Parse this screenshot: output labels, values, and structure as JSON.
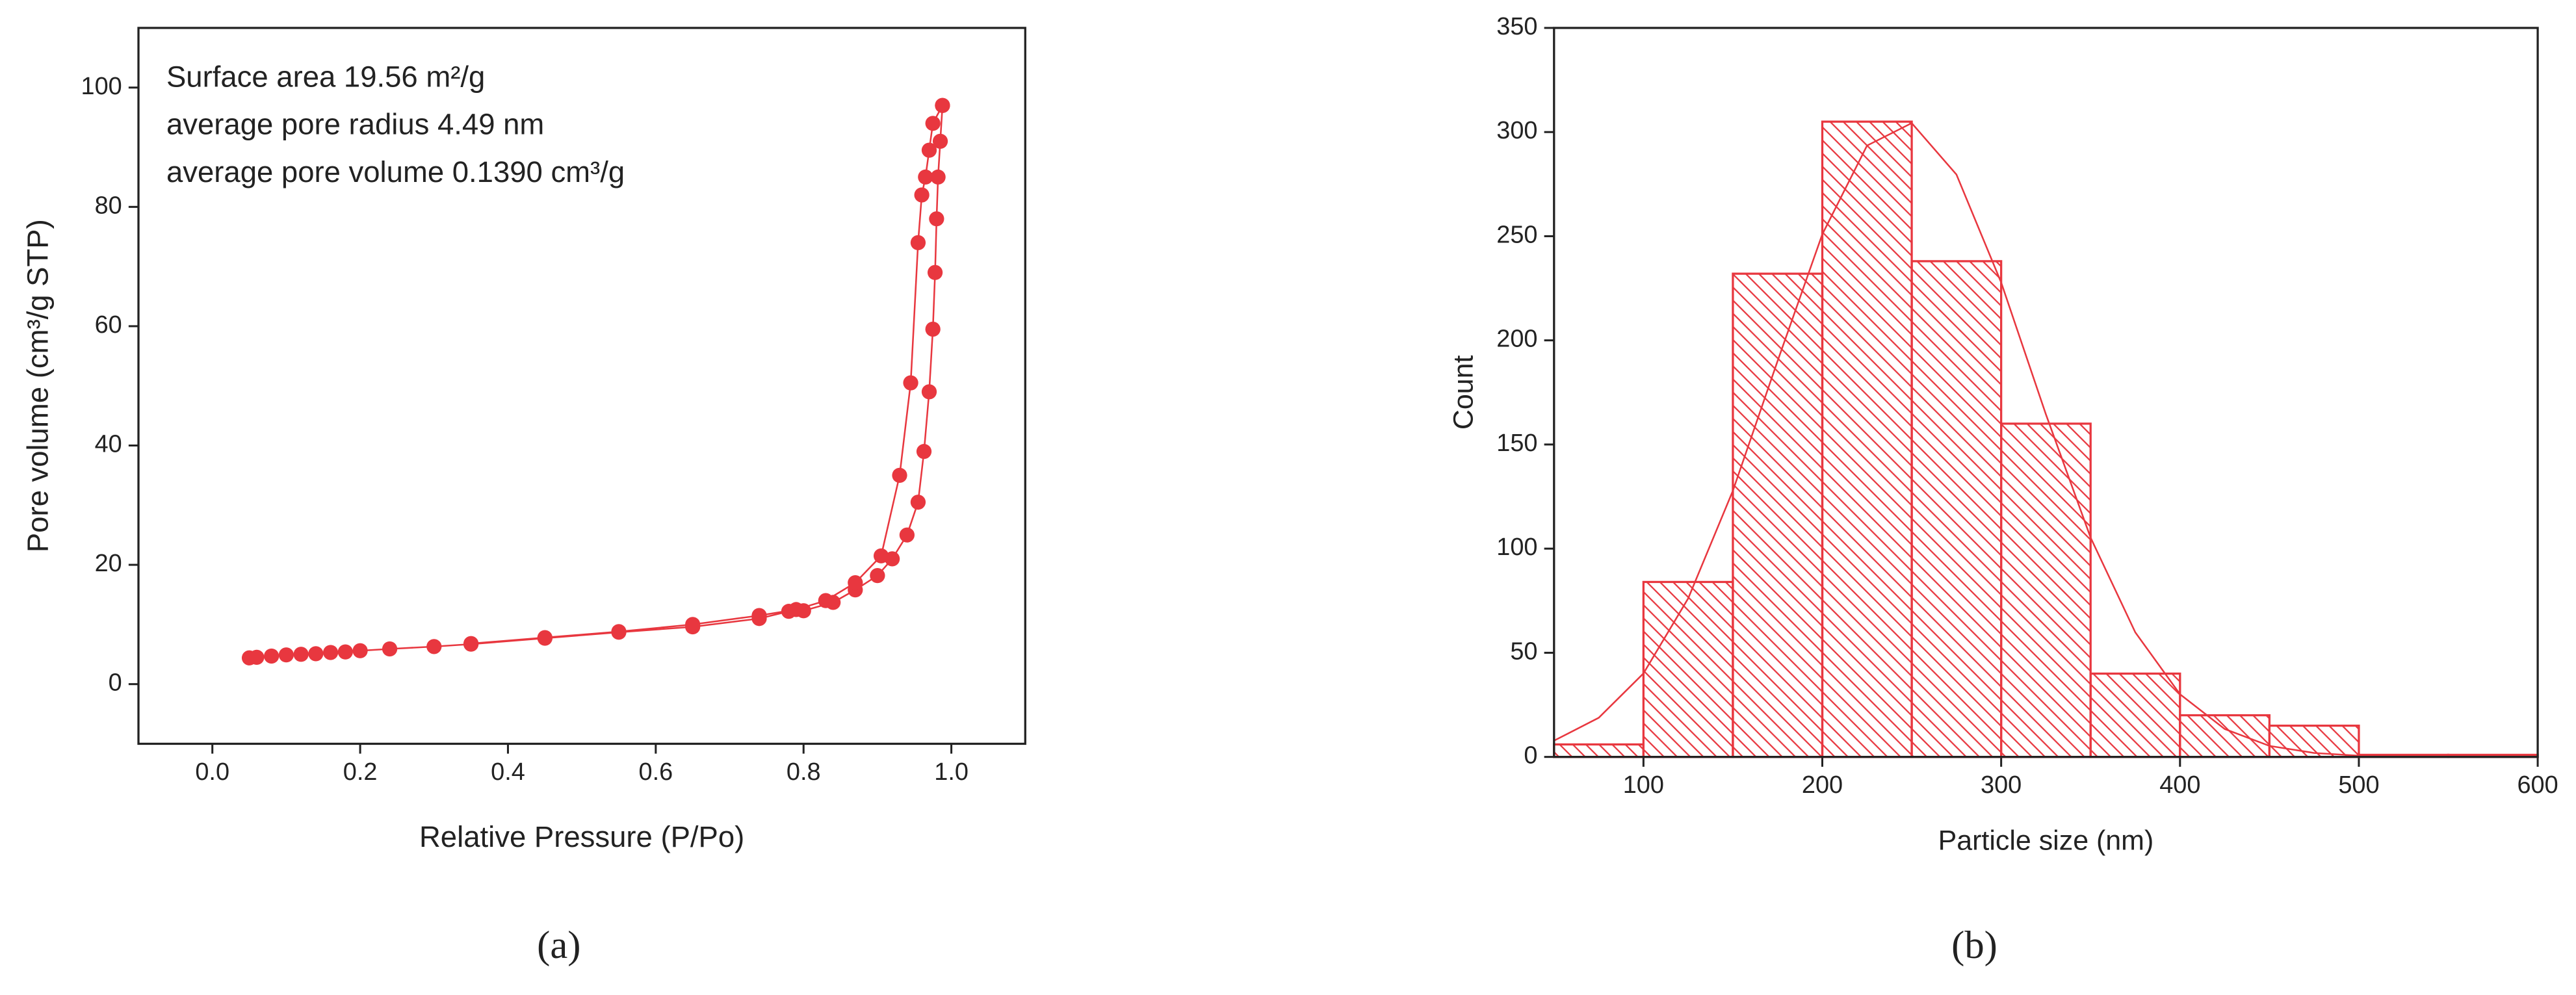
{
  "chart_data": [
    {
      "type": "scatter",
      "xlabel": "Relative Pressure (P/Po)",
      "ylabel": "Pore volume (cm³/g STP)",
      "caption": "(a)",
      "annotations": [
        "Surface area 19.56 m²/g",
        "average pore radius 4.49 nm",
        "average pore volume  0.1390 cm³/g"
      ],
      "xlim": [
        -0.1,
        1.1
      ],
      "ylim": [
        -10,
        110
      ],
      "xticks": [
        {
          "value": 0,
          "label": "0.0"
        },
        0.2,
        0.4,
        0.6,
        0.8,
        {
          "value": 1,
          "label": "1.0"
        }
      ],
      "yticks": [
        0,
        20,
        40,
        60,
        80,
        100
      ],
      "series": [
        {
          "color": "#e8373f",
          "x": [
            0.05,
            0.06,
            0.08,
            0.1,
            0.12,
            0.14,
            0.16,
            0.18,
            0.2,
            0.24,
            0.3,
            0.35,
            0.45,
            0.55,
            0.65,
            0.74,
            0.78,
            0.8,
            0.84,
            0.87,
            0.9,
            0.92,
            0.94,
            0.955,
            0.963,
            0.97,
            0.975,
            0.978,
            0.98,
            0.982,
            0.985,
            0.988
          ],
          "values": [
            4.4,
            4.5,
            4.7,
            4.9,
            5.0,
            5.1,
            5.3,
            5.4,
            5.6,
            5.9,
            6.3,
            6.7,
            7.7,
            8.7,
            9.6,
            11,
            12.2,
            12.3,
            13.7,
            15.8,
            18.2,
            21,
            25,
            30.5,
            39,
            49,
            59.5,
            69,
            78,
            85,
            91,
            97
          ]
        },
        {
          "color": "#e8373f",
          "x": [
            0.988,
            0.975,
            0.97,
            0.965,
            0.96,
            0.955,
            0.945,
            0.93,
            0.905,
            0.87,
            0.83,
            0.79,
            0.74,
            0.65,
            0.55,
            0.45,
            0.35
          ],
          "values": [
            97,
            94,
            89.5,
            85,
            82,
            74,
            50.5,
            35,
            21.5,
            17,
            14,
            12.5,
            11.5,
            10,
            8.8,
            7.8,
            6.8
          ]
        }
      ]
    },
    {
      "type": "histogram",
      "xlabel": "Particle size (nm)",
      "ylabel": "Count",
      "caption": "(b)",
      "color": "#e8373f",
      "xlim": [
        50,
        600
      ],
      "ylim": [
        0,
        350
      ],
      "xticks": [
        100,
        200,
        300,
        400,
        500,
        600
      ],
      "yticks": [
        0,
        50,
        100,
        150,
        200,
        250,
        300,
        350
      ],
      "bins": [
        50,
        100,
        150,
        200,
        250,
        300,
        350,
        400,
        450,
        500,
        550,
        600
      ],
      "values": [
        6,
        84,
        232,
        305,
        238,
        160,
        40,
        20,
        15,
        1,
        1
      ],
      "fit": {
        "x": [
          50,
          75,
          100,
          125,
          150,
          175,
          200,
          225,
          250,
          275,
          300,
          325,
          350,
          375,
          400,
          425,
          450,
          475,
          500,
          525,
          550,
          575,
          600
        ],
        "values": [
          7.8,
          18.8,
          40.1,
          76.1,
          127.8,
          190.1,
          250.9,
          293.5,
          304.3,
          279.6,
          227.8,
          164.5,
          105.3,
          59.8,
          30.1,
          13.4,
          5.3,
          1.9,
          0.6,
          0.2,
          0,
          0,
          0
        ]
      }
    }
  ]
}
